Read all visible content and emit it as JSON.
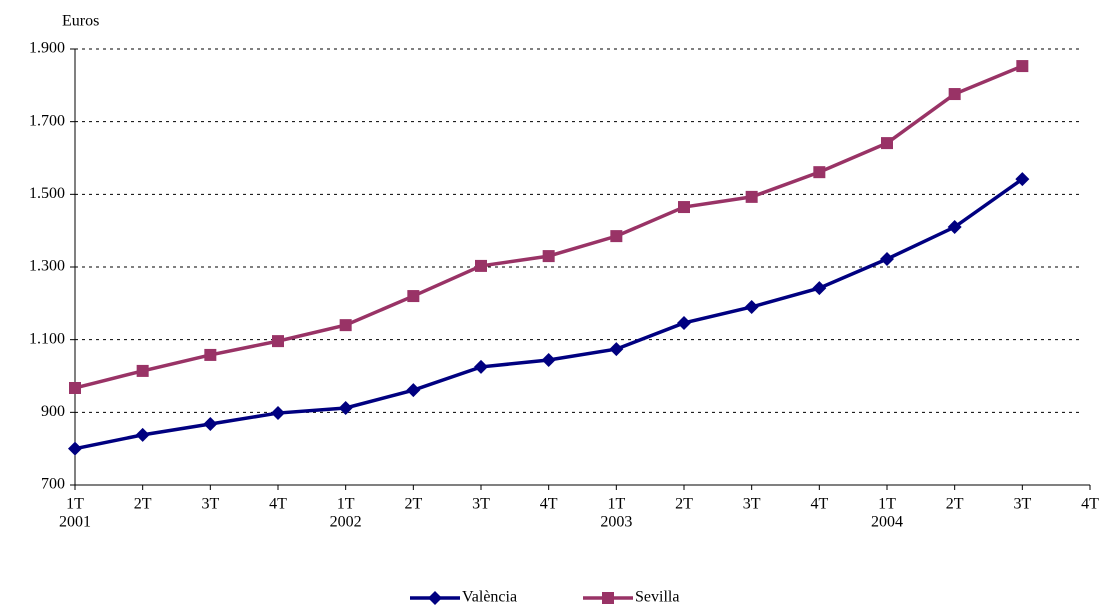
{
  "chart_data": {
    "type": "line",
    "y_label": "Euros",
    "categories": [
      "1T",
      "2T",
      "3T",
      "4T",
      "1T",
      "2T",
      "3T",
      "4T",
      "1T",
      "2T",
      "3T",
      "4T",
      "1T",
      "2T",
      "3T",
      "4T"
    ],
    "years": [
      "2001",
      "2002",
      "2003",
      "2004"
    ],
    "series": [
      {
        "name": "València",
        "color": "#000080",
        "marker": "diamond",
        "values": [
          800,
          838,
          868,
          898,
          912,
          961,
          1025,
          1044,
          1074,
          1146,
          1190,
          1242,
          1322,
          1410,
          1542,
          null
        ]
      },
      {
        "name": "Sevilla",
        "color": "#993366",
        "marker": "square",
        "values": [
          967,
          1014,
          1058,
          1096,
          1140,
          1220,
          1303,
          1330,
          1385,
          1465,
          1493,
          1561,
          1641,
          1776,
          1853,
          null
        ]
      }
    ],
    "ylim": [
      700,
      1900
    ],
    "yticks": [
      700,
      900,
      {
        "value": 1100,
        "label": "1.100"
      },
      {
        "value": 1300,
        "label": "1.300"
      },
      {
        "value": 1500,
        "label": "1.500"
      },
      {
        "value": 1700,
        "label": "1.700"
      },
      {
        "value": 1900,
        "label": "1.900"
      }
    ],
    "grid": true,
    "legend": "bottom"
  }
}
